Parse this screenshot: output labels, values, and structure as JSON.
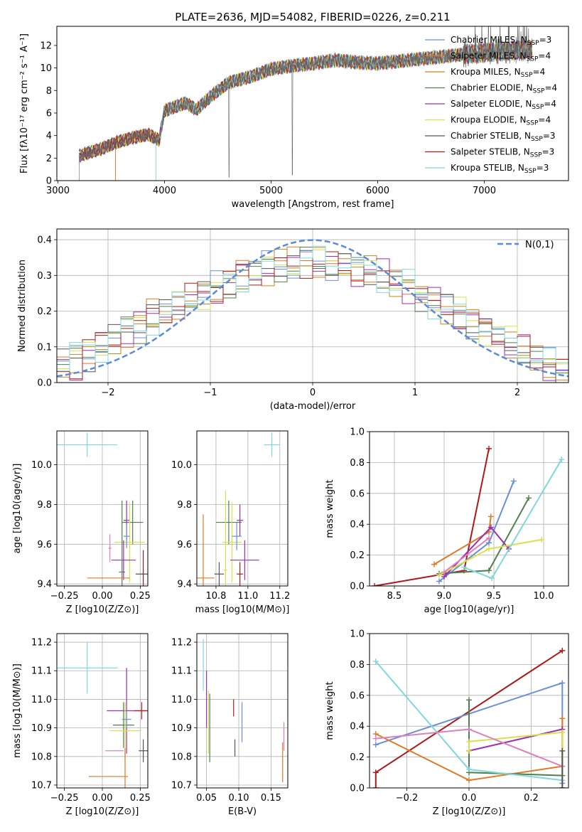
{
  "title": "PLATE=2636, MJD=54082, FIBERID=0226, z=0.211",
  "colors": {
    "chabrier_miles": "#6a8fd8",
    "salpeter_miles": "#e07a25",
    "kroupa_miles": "#c8861a",
    "chabrier_elodie": "#4f7f4f",
    "salpeter_elodie": "#9b30b0",
    "kroupa_elodie": "#d9e04a",
    "chabrier_stelib": "#555555",
    "salpeter_stelib": "#b01818",
    "kroupa_stelib": "#7fd8dc",
    "pink": "#e07fbf",
    "gauss": "#5b8bd6"
  },
  "chart_data": [
    {
      "id": "spectrum",
      "type": "line",
      "title": "PLATE=2636, MJD=54082, FIBERID=0226, z=0.211",
      "xlabel": "wavelength [Angstrom, rest frame]",
      "ylabel": "Flux [fλ10⁻¹⁷ erg cm⁻² s⁻¹ A⁻¹]",
      "xlim": [
        2990,
        7790
      ],
      "ylim": [
        0,
        13.7
      ],
      "xticks": [
        3000,
        4000,
        5000,
        6000,
        7000
      ],
      "yticks": [
        0,
        2,
        4,
        6,
        8,
        10,
        12
      ],
      "legend_position": "top-right",
      "legend": [
        {
          "label": "Chabrier MILES, N",
          "sub": "SSP",
          "tail": "=3",
          "color": "#6a8fd8"
        },
        {
          "label": "Salpeter MILES, N",
          "sub": "SSP",
          "tail": "=4",
          "color": "#e07a25"
        },
        {
          "label": "Kroupa MILES, N",
          "sub": "SSP",
          "tail": "=4",
          "color": "#c8861a"
        },
        {
          "label": "Chabrier ELODIE, N",
          "sub": "SSP",
          "tail": "=4",
          "color": "#4f7f4f"
        },
        {
          "label": "Salpeter ELODIE, N",
          "sub": "SSP",
          "tail": "=4",
          "color": "#9b30b0"
        },
        {
          "label": "Kroupa ELODIE, N",
          "sub": "SSP",
          "tail": "=4",
          "color": "#d9e04a"
        },
        {
          "label": "Chabrier STELIB, N",
          "sub": "SSP",
          "tail": "=3",
          "color": "#555555"
        },
        {
          "label": "Salpeter STELIB, N",
          "sub": "SSP",
          "tail": "=3",
          "color": "#b01818"
        },
        {
          "label": "Kroupa STELIB, N",
          "sub": "SSP",
          "tail": "=3",
          "color": "#7fd8dc"
        }
      ],
      "continuum": [
        [
          3200,
          2.2
        ],
        [
          3400,
          2.8
        ],
        [
          3550,
          3.4
        ],
        [
          3700,
          3.8
        ],
        [
          3850,
          4.1
        ],
        [
          3950,
          3.6
        ],
        [
          4000,
          6.2
        ],
        [
          4200,
          6.9
        ],
        [
          4300,
          6.3
        ],
        [
          4450,
          7.6
        ],
        [
          4600,
          8.7
        ],
        [
          4800,
          9.2
        ],
        [
          5000,
          9.9
        ],
        [
          5200,
          10.2
        ],
        [
          5400,
          10.4
        ],
        [
          5600,
          10.7
        ],
        [
          5800,
          10.5
        ],
        [
          6000,
          10.4
        ],
        [
          6300,
          10.7
        ],
        [
          6600,
          11.0
        ],
        [
          6900,
          11.3
        ],
        [
          7200,
          11.5
        ],
        [
          7400,
          11.6
        ]
      ]
    },
    {
      "id": "residuals",
      "type": "histogram",
      "xlabel": "(data-model)/error",
      "ylabel": "Normed distribution",
      "xlim": [
        -2.5,
        2.5
      ],
      "ylim": [
        0,
        0.43
      ],
      "xticks": [
        -2,
        -1,
        0,
        1,
        2
      ],
      "yticks": [
        0.0,
        0.1,
        0.2,
        0.3,
        0.4
      ],
      "legend_position": "top-right",
      "legend_label": "N(0,1)",
      "bins": 40,
      "base_series": [
        0.05,
        0.06,
        0.08,
        0.11,
        0.12,
        0.15,
        0.16,
        0.18,
        0.19,
        0.21,
        0.23,
        0.25,
        0.26,
        0.28,
        0.3,
        0.31,
        0.32,
        0.33,
        0.33,
        0.34,
        0.34,
        0.33,
        0.33,
        0.32,
        0.31,
        0.3,
        0.28,
        0.27,
        0.25,
        0.23,
        0.21,
        0.19,
        0.17,
        0.15,
        0.13,
        0.11,
        0.09,
        0.07,
        0.06,
        0.04
      ]
    },
    {
      "id": "age_vs_Z",
      "type": "errorbar",
      "xlabel": "Z [log10(Z/Z⊙)]",
      "ylabel": "age  [log10(age/yr)]",
      "xlim": [
        -0.3,
        0.3
      ],
      "ylim": [
        9.39,
        10.17
      ],
      "xticks": [
        -0.25,
        0.0,
        0.25
      ],
      "yticks": [
        9.4,
        9.6,
        9.8,
        10.0
      ],
      "points": [
        {
          "x": -0.1,
          "y": 10.1,
          "xerr": 0.2,
          "yerr": 0.06,
          "series": "kroupa_stelib"
        },
        {
          "x": 0.2,
          "y": 9.71,
          "xerr": 0.07,
          "yerr": 0.11,
          "series": "chabrier_elodie"
        },
        {
          "x": 0.16,
          "y": 9.72,
          "xerr": 0.02,
          "yerr": 0.1,
          "series": "salpeter_elodie"
        },
        {
          "x": 0.18,
          "y": 9.61,
          "xerr": 0.1,
          "yerr": 0.2,
          "series": "kroupa_elodie"
        },
        {
          "x": 0.14,
          "y": 9.52,
          "xerr": 0.08,
          "yerr": 0.1,
          "series": "salpeter_elodie"
        },
        {
          "x": 0.05,
          "y": 9.58,
          "xerr": 0.01,
          "yerr": 0.07,
          "series": "pink"
        },
        {
          "x": 0.13,
          "y": 9.46,
          "xerr": 0.02,
          "yerr": 0.36,
          "series": "chabrier_elodie"
        },
        {
          "x": 0.04,
          "y": 9.43,
          "xerr": 0.14,
          "yerr": 0.0,
          "series": "salpeter_miles"
        },
        {
          "x": 0.27,
          "y": 9.45,
          "xerr": 0.01,
          "yerr": 0.12,
          "series": "salpeter_stelib"
        },
        {
          "x": 0.27,
          "y": 9.45,
          "xerr": 0.05,
          "yerr": 0.0,
          "series": "chabrier_stelib"
        },
        {
          "x": 0.16,
          "y": 9.64,
          "xerr": 0.02,
          "yerr": 0.06,
          "series": "chabrier_miles"
        }
      ]
    },
    {
      "id": "age_vs_mass",
      "type": "errorbar",
      "xlabel": "mass [log10(M/M⊙)]",
      "ylabel": "",
      "xlim": [
        10.68,
        11.25
      ],
      "ylim": [
        9.39,
        10.17
      ],
      "xticks": [
        10.8,
        11.0,
        11.2
      ],
      "yticks": [
        9.4,
        9.6,
        9.8,
        10.0
      ],
      "points": [
        {
          "x": 11.15,
          "y": 10.1,
          "xerr": 0.05,
          "yerr": 0.06,
          "series": "kroupa_stelib"
        },
        {
          "x": 10.88,
          "y": 9.71,
          "xerr": 0.08,
          "yerr": 0.11,
          "series": "chabrier_elodie"
        },
        {
          "x": 10.95,
          "y": 9.72,
          "xerr": 0.02,
          "yerr": 0.08,
          "series": "salpeter_elodie"
        },
        {
          "x": 10.9,
          "y": 9.61,
          "xerr": 0.06,
          "yerr": 0.2,
          "series": "kroupa_elodie"
        },
        {
          "x": 10.98,
          "y": 9.52,
          "xerr": 0.09,
          "yerr": 0.1,
          "series": "salpeter_elodie"
        },
        {
          "x": 10.93,
          "y": 9.64,
          "xerr": 0.03,
          "yerr": 0.07,
          "series": "chabrier_miles"
        },
        {
          "x": 10.72,
          "y": 9.43,
          "xerr": 0.07,
          "yerr": 0.32,
          "series": "salpeter_miles"
        },
        {
          "x": 10.82,
          "y": 9.45,
          "xerr": 0.03,
          "yerr": 0.06,
          "series": "chabrier_stelib"
        },
        {
          "x": 10.95,
          "y": 9.45,
          "xerr": 0.02,
          "yerr": 0.06,
          "series": "salpeter_stelib"
        },
        {
          "x": 10.86,
          "y": 9.47,
          "xerr": 0.01,
          "yerr": 0.4,
          "series": "kroupa_elodie"
        }
      ]
    },
    {
      "id": "weight_vs_age",
      "type": "line",
      "xlabel": "age  [log10(age/yr)]",
      "ylabel": "mass weight",
      "xlim": [
        8.25,
        10.25
      ],
      "ylim": [
        0,
        1
      ],
      "xticks": [
        8.5,
        9.0,
        9.5,
        10.0
      ],
      "yticks": [
        0.0,
        0.2,
        0.4,
        0.6,
        0.8,
        1.0
      ],
      "series": [
        {
          "name": "salpeter_stelib",
          "x": [
            8.3,
            9.2,
            9.45
          ],
          "y": [
            0.0,
            0.1,
            0.89
          ]
        },
        {
          "name": "chabrier_miles",
          "x": [
            8.95,
            9.45,
            9.7
          ],
          "y": [
            0.03,
            0.28,
            0.68
          ]
        },
        {
          "name": "salpeter_miles",
          "x": [
            8.9,
            9.45,
            9.47
          ],
          "y": [
            0.14,
            0.35,
            0.45
          ]
        },
        {
          "name": "chabrier_elodie",
          "x": [
            8.95,
            9.45,
            9.85
          ],
          "y": [
            0.08,
            0.1,
            0.57
          ]
        },
        {
          "name": "salpeter_elodie",
          "x": [
            9.0,
            9.47,
            9.65
          ],
          "y": [
            0.06,
            0.38,
            0.24
          ]
        },
        {
          "name": "kroupa_elodie",
          "x": [
            8.95,
            9.45,
            9.98
          ],
          "y": [
            0.07,
            0.24,
            0.3
          ]
        },
        {
          "name": "kroupa_stelib",
          "x": [
            9.2,
            9.48,
            10.18
          ],
          "y": [
            0.12,
            0.05,
            0.82
          ]
        },
        {
          "name": "pink",
          "x": [
            9.0,
            9.45
          ],
          "y": [
            0.09,
            0.31
          ]
        }
      ]
    },
    {
      "id": "mass_vs_Z",
      "type": "errorbar",
      "xlabel": "Z [log10(Z/Z⊙)]",
      "ylabel": "mass [log10(M/M⊙)]",
      "xlim": [
        -0.3,
        0.3
      ],
      "ylim": [
        10.69,
        11.23
      ],
      "xticks": [
        -0.25,
        0.0,
        0.25
      ],
      "yticks": [
        10.7,
        10.8,
        10.9,
        11.0,
        11.1,
        11.2
      ],
      "points": [
        {
          "x": -0.1,
          "y": 11.11,
          "xerr": 0.2,
          "yerr": 0.09,
          "series": "kroupa_stelib"
        },
        {
          "x": 0.16,
          "y": 10.96,
          "xerr": 0.13,
          "yerr": 0.15,
          "series": "salpeter_elodie"
        },
        {
          "x": 0.26,
          "y": 10.96,
          "xerr": 0.05,
          "yerr": 0.03,
          "series": "salpeter_stelib"
        },
        {
          "x": 0.14,
          "y": 10.91,
          "xerr": 0.07,
          "yerr": 0.08,
          "series": "chabrier_elodie"
        },
        {
          "x": 0.15,
          "y": 10.89,
          "xerr": 0.1,
          "yerr": 0.1,
          "series": "kroupa_elodie"
        },
        {
          "x": 0.16,
          "y": 10.93,
          "xerr": 0.03,
          "yerr": 0.03,
          "series": "chabrier_miles"
        },
        {
          "x": 0.08,
          "y": 10.82,
          "xerr": 0.06,
          "yerr": 0.0,
          "series": "pink"
        },
        {
          "x": 0.27,
          "y": 10.82,
          "xerr": 0.03,
          "yerr": 0.04,
          "series": "chabrier_stelib"
        },
        {
          "x": 0.04,
          "y": 10.73,
          "xerr": 0.13,
          "yerr": 0.0,
          "series": "salpeter_miles"
        },
        {
          "x": 0.15,
          "y": 10.73,
          "xerr": 0.0,
          "yerr": 0.1,
          "series": "salpeter_miles"
        }
      ]
    },
    {
      "id": "mass_vs_EBV",
      "type": "errorbar",
      "xlabel": "E(B-V)",
      "ylabel": "",
      "xlim": [
        0.035,
        0.176
      ],
      "ylim": [
        10.69,
        11.23
      ],
      "xticks": [
        0.05,
        0.1,
        0.15
      ],
      "yticks": [
        10.7,
        10.8,
        10.9,
        11.0,
        11.1,
        11.2
      ],
      "points": [
        {
          "x": 0.045,
          "y": 11.12,
          "xerr": 0.0,
          "yerr": 0.09,
          "series": "kroupa_stelib"
        },
        {
          "x": 0.05,
          "y": 11.0,
          "xerr": 0.0,
          "yerr": 0.1,
          "series": "salpeter_elodie"
        },
        {
          "x": 0.053,
          "y": 10.92,
          "xerr": 0.0,
          "yerr": 0.11,
          "series": "kroupa_elodie"
        },
        {
          "x": 0.055,
          "y": 10.9,
          "xerr": 0.0,
          "yerr": 0.12,
          "series": "chabrier_elodie"
        },
        {
          "x": 0.092,
          "y": 10.97,
          "xerr": 0.0,
          "yerr": 0.03,
          "series": "salpeter_stelib"
        },
        {
          "x": 0.094,
          "y": 10.83,
          "xerr": 0.0,
          "yerr": 0.03,
          "series": "chabrier_stelib"
        },
        {
          "x": 0.105,
          "y": 10.92,
          "xerr": 0.0,
          "yerr": 0.07,
          "series": "chabrier_miles"
        },
        {
          "x": 0.168,
          "y": 10.78,
          "xerr": 0.0,
          "yerr": 0.07,
          "series": "salpeter_miles"
        },
        {
          "x": 0.17,
          "y": 10.87,
          "xerr": 0.0,
          "yerr": 0.05,
          "series": "pink"
        }
      ]
    },
    {
      "id": "weight_vs_Z",
      "type": "line",
      "xlabel": "Z [log10(Z/Z⊙)]",
      "ylabel": "mass weight",
      "xlim": [
        -0.32,
        0.32
      ],
      "ylim": [
        0,
        1
      ],
      "xticks": [
        -0.2,
        0.0,
        0.2
      ],
      "yticks": [
        0.0,
        0.2,
        0.4,
        0.6,
        0.8,
        1.0
      ],
      "series": [
        {
          "name": "salpeter_stelib",
          "x": [
            -0.3,
            -0.3,
            0.3
          ],
          "y": [
            0.0,
            0.1,
            0.89
          ]
        },
        {
          "name": "chabrier_miles",
          "x": [
            -0.3,
            0.3,
            0.3
          ],
          "y": [
            0.28,
            0.68,
            0.03
          ]
        },
        {
          "name": "salpeter_miles",
          "x": [
            -0.3,
            0.0,
            0.3,
            0.3
          ],
          "y": [
            0.35,
            0.05,
            0.14,
            0.45
          ]
        },
        {
          "name": "chabrier_elodie",
          "x": [
            0.0,
            0.0,
            0.3
          ],
          "y": [
            0.57,
            0.1,
            0.08
          ]
        },
        {
          "name": "salpeter_elodie",
          "x": [
            0.0,
            0.3
          ],
          "y": [
            0.24,
            0.38
          ]
        },
        {
          "name": "kroupa_elodie",
          "x": [
            0.0,
            0.0,
            0.3,
            0.3
          ],
          "y": [
            0.24,
            0.3,
            0.36,
            0.0
          ]
        },
        {
          "name": "kroupa_stelib",
          "x": [
            -0.3,
            0.0,
            0.3
          ],
          "y": [
            0.82,
            0.12,
            0.05
          ]
        },
        {
          "name": "pink",
          "x": [
            -0.3,
            0.0,
            0.3
          ],
          "y": [
            0.32,
            0.38,
            0.14
          ]
        },
        {
          "name": "chabrier_stelib",
          "x": [
            0.3,
            0.3
          ],
          "y": [
            0.0,
            0.24
          ]
        }
      ]
    }
  ]
}
